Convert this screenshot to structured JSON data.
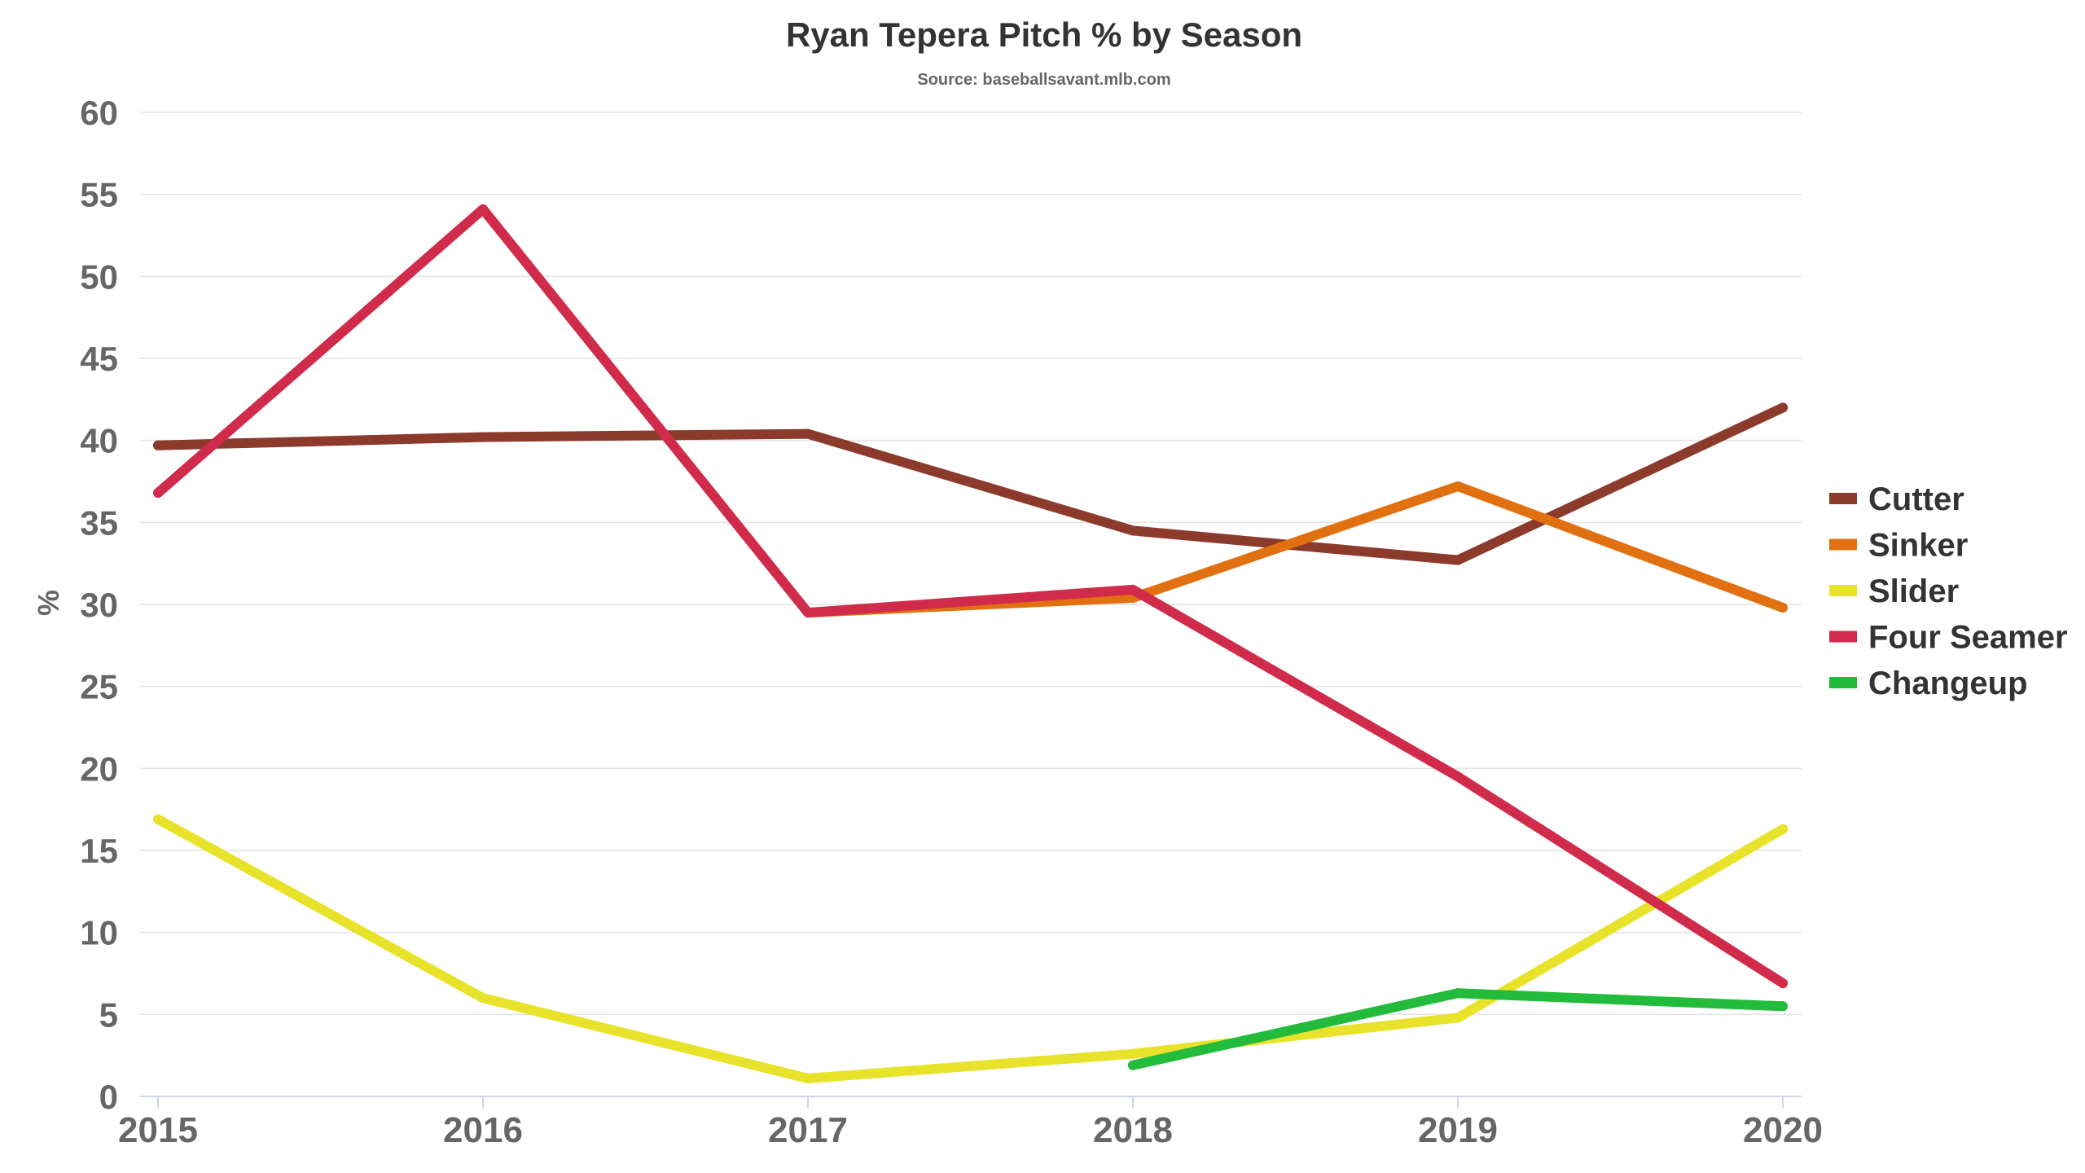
{
  "chart_data": {
    "type": "line",
    "title": "Ryan Tepera Pitch % by Season",
    "subtitle": "Source: baseballsavant.mlb.com",
    "xlabel": "",
    "ylabel": "%",
    "x": [
      "2015",
      "2016",
      "2017",
      "2018",
      "2019",
      "2020"
    ],
    "ylim": [
      0,
      60
    ],
    "yticks": [
      "0",
      "5",
      "10",
      "15",
      "20",
      "25",
      "30",
      "35",
      "40",
      "45",
      "50",
      "55",
      "60"
    ],
    "grid": true,
    "legend_position": "right",
    "series": [
      {
        "name": "Cutter",
        "color": "#8B3A2B",
        "values": [
          39.7,
          40.2,
          40.4,
          34.5,
          32.7,
          42.0
        ]
      },
      {
        "name": "Sinker",
        "color": "#E07010",
        "values": [
          null,
          null,
          29.5,
          30.4,
          37.2,
          29.8
        ]
      },
      {
        "name": "Slider",
        "color": "#E8E22A",
        "values": [
          16.9,
          6.0,
          1.1,
          2.6,
          4.8,
          16.3
        ]
      },
      {
        "name": "Four Seamer",
        "color": "#D02B4A",
        "values": [
          36.8,
          54.1,
          29.5,
          30.9,
          19.5,
          6.9
        ]
      },
      {
        "name": "Changeup",
        "color": "#22BB3C",
        "values": [
          null,
          null,
          null,
          1.9,
          6.3,
          5.5
        ]
      }
    ]
  }
}
